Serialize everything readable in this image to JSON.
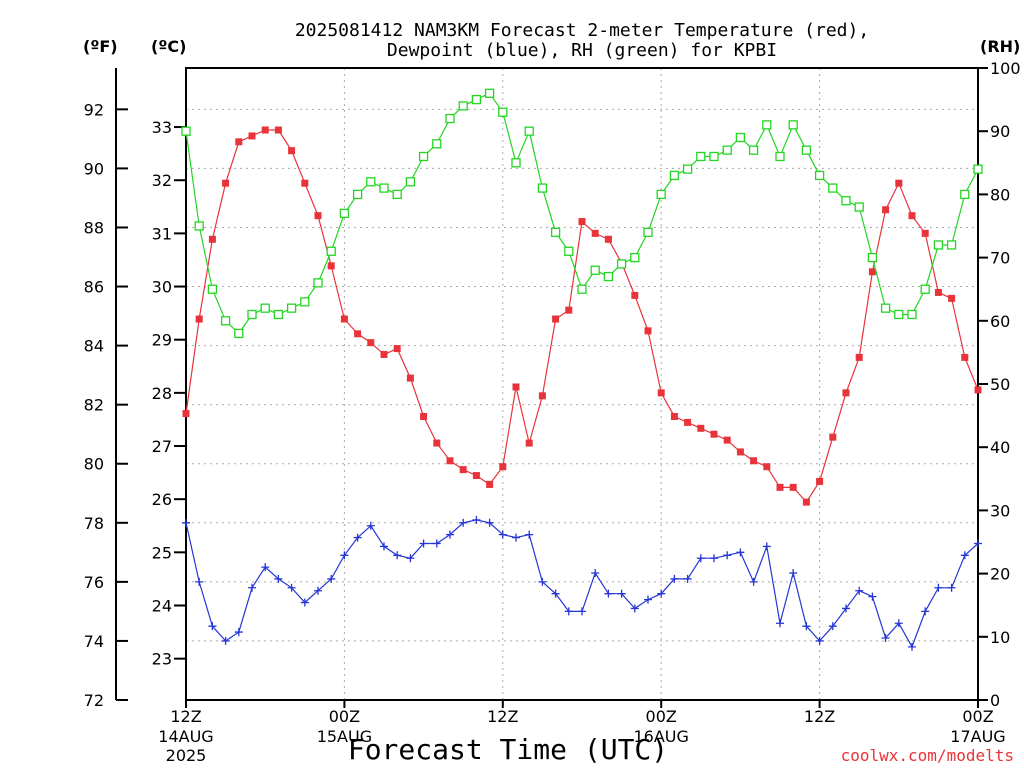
{
  "chart_data": {
    "type": "line",
    "title_line1": "2025081412 NAM3KM Forecast 2-meter Temperature (red),",
    "title_line2": "Dewpoint (blue), RH (green) for KPBI",
    "xlabel": "Forecast Time (UTC)",
    "unit_f": "(ºF)",
    "unit_c": "(ºC)",
    "unit_rh": "(RH)",
    "watermark": "coolwx.com/modelts",
    "grid": true,
    "x_range_hours": [
      0,
      60
    ],
    "x_ticks": [
      {
        "hour": 0,
        "line1": "12Z",
        "line2": "14AUG",
        "line3": "2025"
      },
      {
        "hour": 12,
        "line1": "00Z",
        "line2": "15AUG",
        "line3": ""
      },
      {
        "hour": 24,
        "line1": "12Z",
        "line2": "",
        "line3": ""
      },
      {
        "hour": 36,
        "line1": "00Z",
        "line2": "16AUG",
        "line3": ""
      },
      {
        "hour": 48,
        "line1": "12Z",
        "line2": "",
        "line3": ""
      },
      {
        "hour": 60,
        "line1": "00Z",
        "line2": "17AUG",
        "line3": ""
      }
    ],
    "f_axis": {
      "ylim": [
        72,
        93.4
      ],
      "ticks": [
        "72",
        "74",
        "76",
        "78",
        "80",
        "82",
        "84",
        "86",
        "88",
        "90",
        "92"
      ]
    },
    "c_axis": {
      "ticks": [
        "23",
        "24",
        "25",
        "26",
        "27",
        "28",
        "29",
        "30",
        "31",
        "32",
        "33"
      ]
    },
    "rh_axis": {
      "ylim": [
        0,
        100
      ],
      "ticks": [
        "0",
        "10",
        "20",
        "30",
        "40",
        "50",
        "60",
        "70",
        "80",
        "90",
        "100"
      ]
    },
    "series": [
      {
        "name": "Temperature",
        "axis": "F",
        "color": "#e8333a",
        "marker": "filled-square",
        "values": [
          81.7,
          84.9,
          87.6,
          89.5,
          90.9,
          91.1,
          91.3,
          91.3,
          90.6,
          89.5,
          88.4,
          86.7,
          84.9,
          84.4,
          84.1,
          83.7,
          83.9,
          82.9,
          81.6,
          80.7,
          80.1,
          79.8,
          79.6,
          79.3,
          79.9,
          82.6,
          80.7,
          82.3,
          84.9,
          85.2,
          88.2,
          87.8,
          87.6,
          86.8,
          85.7,
          84.5,
          82.4,
          81.6,
          81.4,
          81.2,
          81.0,
          80.8,
          80.4,
          80.1,
          79.9,
          79.2,
          79.2,
          78.7,
          79.4,
          80.9,
          82.4,
          83.6,
          86.5,
          88.6,
          89.5,
          88.4,
          87.8,
          85.8,
          85.6,
          83.6,
          82.5
        ]
      },
      {
        "name": "Dewpoint",
        "axis": "F",
        "color": "#2436d6",
        "marker": "plus",
        "values": [
          78.0,
          76.0,
          74.5,
          74.0,
          74.3,
          75.8,
          76.5,
          76.1,
          75.8,
          75.3,
          75.7,
          76.1,
          76.9,
          77.5,
          77.9,
          77.2,
          76.9,
          76.8,
          77.3,
          77.3,
          77.6,
          78.0,
          78.1,
          78.0,
          77.6,
          77.5,
          77.6,
          76.0,
          75.6,
          75.0,
          75.0,
          76.3,
          75.6,
          75.6,
          75.1,
          75.4,
          75.6,
          76.1,
          76.1,
          76.8,
          76.8,
          76.9,
          77.0,
          76.0,
          77.2,
          74.6,
          76.3,
          74.5,
          74.0,
          74.5,
          75.1,
          75.7,
          75.5,
          74.1,
          74.6,
          73.8,
          75.0,
          75.8,
          75.8,
          76.9,
          77.3
        ]
      },
      {
        "name": "RH",
        "axis": "RH",
        "color": "#22d622",
        "marker": "open-square",
        "values": [
          90,
          75,
          65,
          60,
          58,
          61,
          62,
          61,
          62,
          63,
          66,
          71,
          77,
          80,
          82,
          81,
          80,
          82,
          86,
          88,
          92,
          94,
          95,
          96,
          93,
          85,
          90,
          81,
          74,
          71,
          65,
          68,
          67,
          69,
          70,
          74,
          80,
          83,
          84,
          86,
          86,
          87,
          89,
          87,
          91,
          86,
          91,
          87,
          83,
          81,
          79,
          78,
          70,
          62,
          61,
          61,
          65,
          72,
          72,
          80,
          84
        ]
      }
    ]
  }
}
